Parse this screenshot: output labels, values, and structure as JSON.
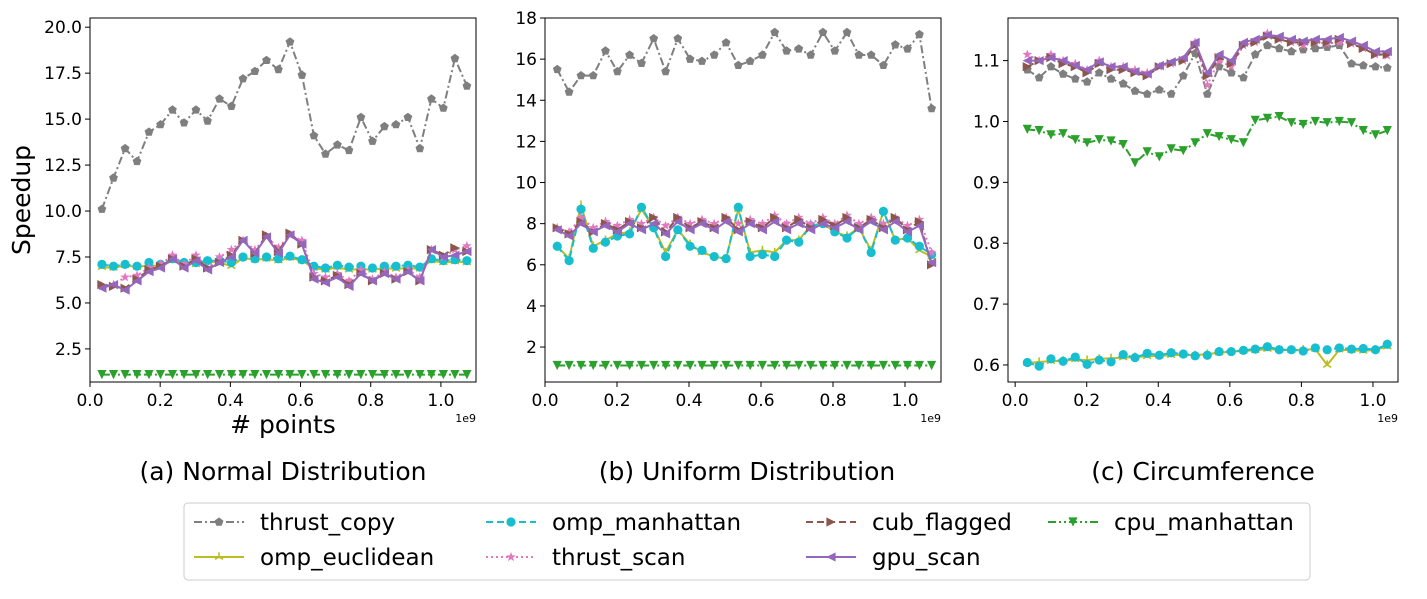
{
  "x_exponent": "1e9",
  "chart_data": [
    {
      "type": "line",
      "caption": "(a) Normal Distribution",
      "xlabel": "# points",
      "ylabel": "Speedup",
      "xlim": [
        0.0,
        1.1
      ],
      "ylim": [
        0.7,
        20.5
      ],
      "xticks": [
        0.0,
        0.2,
        0.4,
        0.6,
        0.8,
        1.0
      ],
      "xtick_labels": [
        "0.0",
        "0.2",
        "0.4",
        "0.6",
        "0.8",
        "1.0"
      ],
      "yticks": [
        2.5,
        5.0,
        7.5,
        10.0,
        12.5,
        15.0,
        17.5,
        20.0
      ],
      "ytick_labels": [
        "2.5",
        "5.0",
        "7.5",
        "10.0",
        "12.5",
        "15.0",
        "17.5",
        "20.0"
      ],
      "x": [
        0.034,
        0.067,
        0.1,
        0.134,
        0.168,
        0.201,
        0.235,
        0.268,
        0.302,
        0.335,
        0.369,
        0.403,
        0.436,
        0.47,
        0.503,
        0.537,
        0.57,
        0.604,
        0.638,
        0.671,
        0.705,
        0.738,
        0.772,
        0.805,
        0.839,
        0.872,
        0.906,
        0.94,
        0.973,
        1.007,
        1.04,
        1.074
      ],
      "series": [
        {
          "id": "thrust_copy",
          "values": [
            10.1,
            11.8,
            13.4,
            12.7,
            14.3,
            14.7,
            15.5,
            14.8,
            15.5,
            14.9,
            16.1,
            15.7,
            17.2,
            17.6,
            18.2,
            17.7,
            19.2,
            17.4,
            14.1,
            13.1,
            13.6,
            13.3,
            15.1,
            13.8,
            14.6,
            14.7,
            15.1,
            13.4,
            16.1,
            15.6,
            18.3,
            16.8
          ]
        },
        {
          "id": "omp_euclidean",
          "values": [
            6.95,
            6.9,
            7.05,
            6.95,
            7.05,
            7.0,
            7.3,
            7.2,
            7.1,
            7.25,
            7.2,
            7.0,
            7.45,
            7.35,
            7.4,
            7.3,
            7.45,
            7.3,
            6.9,
            6.8,
            6.95,
            6.8,
            6.85,
            6.8,
            6.9,
            6.85,
            6.9,
            6.85,
            7.3,
            7.2,
            7.25,
            7.2
          ]
        },
        {
          "id": "omp_manhattan",
          "values": [
            7.1,
            7.0,
            7.1,
            7.0,
            7.2,
            7.1,
            7.4,
            7.2,
            7.2,
            7.3,
            7.3,
            7.2,
            7.5,
            7.4,
            7.5,
            7.4,
            7.55,
            7.35,
            7.0,
            6.9,
            7.05,
            6.95,
            7.0,
            6.9,
            7.0,
            7.0,
            7.05,
            6.95,
            7.4,
            7.3,
            7.35,
            7.3
          ]
        },
        {
          "id": "thrust_scan",
          "values": [
            5.9,
            6.0,
            6.4,
            6.5,
            6.9,
            7.1,
            7.6,
            7.1,
            7.6,
            6.9,
            7.5,
            7.9,
            8.4,
            7.9,
            8.6,
            8.0,
            8.7,
            8.4,
            6.6,
            6.4,
            6.6,
            6.2,
            6.8,
            6.3,
            6.7,
            6.4,
            6.8,
            6.4,
            7.9,
            7.5,
            7.9,
            8.1
          ]
        },
        {
          "id": "cub_flagged",
          "values": [
            6.0,
            5.9,
            5.8,
            6.3,
            6.8,
            7.0,
            7.4,
            7.0,
            7.4,
            6.9,
            7.2,
            7.6,
            8.4,
            7.7,
            8.7,
            7.8,
            8.8,
            8.2,
            6.4,
            6.2,
            6.5,
            6.0,
            6.6,
            6.2,
            6.6,
            6.3,
            6.7,
            6.2,
            7.9,
            7.6,
            8.0,
            7.8
          ]
        },
        {
          "id": "gpu_scan",
          "values": [
            5.8,
            6.0,
            5.7,
            6.2,
            6.7,
            6.9,
            7.4,
            6.9,
            7.3,
            6.8,
            7.2,
            7.5,
            8.4,
            7.7,
            8.6,
            7.7,
            8.7,
            8.2,
            6.3,
            6.1,
            6.4,
            5.9,
            6.6,
            6.2,
            6.6,
            6.3,
            6.7,
            6.2,
            7.9,
            7.5,
            7.6,
            7.8
          ]
        },
        {
          "id": "cpu_manhattan",
          "values": [
            1.1,
            1.1,
            1.1,
            1.1,
            1.1,
            1.1,
            1.1,
            1.1,
            1.1,
            1.1,
            1.1,
            1.1,
            1.1,
            1.1,
            1.1,
            1.1,
            1.1,
            1.1,
            1.1,
            1.1,
            1.1,
            1.1,
            1.1,
            1.1,
            1.1,
            1.1,
            1.1,
            1.1,
            1.1,
            1.1,
            1.1,
            1.1
          ]
        }
      ]
    },
    {
      "type": "line",
      "caption": "(b) Uniform Distribution",
      "xlabel": "",
      "ylabel": "",
      "xlim": [
        0.0,
        1.1
      ],
      "ylim": [
        0.3,
        18.0
      ],
      "xticks": [
        0.0,
        0.2,
        0.4,
        0.6,
        0.8,
        1.0
      ],
      "xtick_labels": [
        "0.0",
        "0.2",
        "0.4",
        "0.6",
        "0.8",
        "1.0"
      ],
      "yticks": [
        2,
        4,
        6,
        8,
        10,
        12,
        14,
        16,
        18
      ],
      "ytick_labels": [
        "2",
        "4",
        "6",
        "8",
        "10",
        "12",
        "14",
        "16",
        "18"
      ],
      "x": [
        0.034,
        0.067,
        0.1,
        0.134,
        0.168,
        0.201,
        0.235,
        0.268,
        0.302,
        0.335,
        0.369,
        0.403,
        0.436,
        0.47,
        0.503,
        0.537,
        0.57,
        0.604,
        0.638,
        0.671,
        0.705,
        0.738,
        0.772,
        0.805,
        0.839,
        0.872,
        0.906,
        0.94,
        0.973,
        1.007,
        1.04,
        1.074
      ],
      "series": [
        {
          "id": "thrust_copy",
          "values": [
            15.5,
            14.4,
            15.2,
            15.2,
            16.4,
            15.4,
            16.2,
            15.8,
            17.0,
            15.4,
            17.0,
            16.0,
            15.9,
            16.2,
            16.8,
            15.7,
            15.9,
            16.2,
            17.3,
            16.4,
            16.5,
            16.2,
            17.3,
            16.4,
            17.3,
            16.2,
            16.2,
            15.7,
            16.7,
            16.5,
            17.2,
            13.6
          ]
        },
        {
          "id": "omp_euclidean",
          "values": [
            6.9,
            6.3,
            8.9,
            6.9,
            7.2,
            7.5,
            7.6,
            8.7,
            7.8,
            6.6,
            7.7,
            7.0,
            6.6,
            6.4,
            6.3,
            8.7,
            6.6,
            6.7,
            6.6,
            7.2,
            7.2,
            7.9,
            8.0,
            7.6,
            7.4,
            7.8,
            6.7,
            8.6,
            7.2,
            7.3,
            6.7,
            6.4
          ]
        },
        {
          "id": "omp_manhattan",
          "values": [
            6.9,
            6.2,
            8.7,
            6.8,
            7.1,
            7.4,
            7.5,
            8.8,
            7.8,
            6.4,
            7.7,
            6.9,
            6.7,
            6.4,
            6.3,
            8.8,
            6.4,
            6.5,
            6.4,
            7.2,
            7.1,
            7.9,
            8.0,
            7.6,
            7.3,
            7.8,
            6.6,
            8.6,
            7.2,
            7.3,
            6.9,
            6.5
          ]
        },
        {
          "id": "thrust_scan",
          "values": [
            7.8,
            7.6,
            8.3,
            7.8,
            8.1,
            7.9,
            8.2,
            8.0,
            8.3,
            7.9,
            8.3,
            8.0,
            8.2,
            8.0,
            8.3,
            8.0,
            8.2,
            8.0,
            8.4,
            8.0,
            8.3,
            8.0,
            8.3,
            8.0,
            8.4,
            8.0,
            8.3,
            8.0,
            8.3,
            7.9,
            8.2,
            6.6
          ]
        },
        {
          "id": "cub_flagged",
          "values": [
            7.8,
            7.5,
            8.1,
            7.6,
            8.0,
            7.7,
            8.1,
            7.8,
            8.3,
            7.6,
            8.3,
            7.8,
            8.1,
            7.8,
            8.3,
            7.7,
            8.1,
            7.8,
            8.3,
            7.8,
            8.2,
            7.8,
            8.2,
            7.9,
            8.3,
            7.8,
            8.2,
            7.8,
            8.3,
            7.7,
            8.1,
            6.0
          ]
        },
        {
          "id": "gpu_scan",
          "values": [
            7.7,
            7.4,
            8.0,
            7.6,
            7.9,
            7.6,
            8.0,
            7.7,
            8.0,
            7.5,
            8.1,
            7.7,
            8.0,
            7.7,
            8.1,
            7.6,
            8.0,
            7.7,
            8.1,
            7.7,
            8.0,
            7.7,
            8.0,
            7.8,
            8.1,
            7.7,
            8.1,
            7.7,
            8.1,
            7.6,
            7.9,
            6.1
          ]
        },
        {
          "id": "cpu_manhattan",
          "values": [
            1.1,
            1.1,
            1.1,
            1.1,
            1.1,
            1.1,
            1.1,
            1.1,
            1.1,
            1.1,
            1.1,
            1.1,
            1.1,
            1.1,
            1.1,
            1.1,
            1.1,
            1.1,
            1.1,
            1.1,
            1.1,
            1.1,
            1.1,
            1.1,
            1.1,
            1.1,
            1.1,
            1.1,
            1.1,
            1.1,
            1.1,
            1.1
          ]
        }
      ]
    },
    {
      "type": "line",
      "caption": "(c) Circumference",
      "xlabel": "",
      "ylabel": "",
      "xlim": [
        -0.02,
        1.07
      ],
      "ylim": [
        0.572,
        1.17
      ],
      "xticks": [
        0.0,
        0.2,
        0.4,
        0.6,
        0.8,
        1.0
      ],
      "xtick_labels": [
        "0.0",
        "0.2",
        "0.4",
        "0.6",
        "0.8",
        "1.0"
      ],
      "yticks": [
        0.6,
        0.7,
        0.8,
        0.9,
        1.0,
        1.1
      ],
      "ytick_labels": [
        "0.6",
        "0.7",
        "0.8",
        "0.9",
        "1.0",
        "1.1"
      ],
      "x": [
        0.034,
        0.067,
        0.1,
        0.134,
        0.168,
        0.201,
        0.235,
        0.268,
        0.302,
        0.335,
        0.369,
        0.403,
        0.436,
        0.47,
        0.503,
        0.537,
        0.57,
        0.604,
        0.638,
        0.671,
        0.705,
        0.738,
        0.772,
        0.805,
        0.839,
        0.872,
        0.906,
        0.94,
        0.973,
        1.007,
        1.04
      ],
      "series": [
        {
          "id": "thrust_copy",
          "values": [
            1.085,
            1.072,
            1.09,
            1.078,
            1.07,
            1.065,
            1.08,
            1.07,
            1.062,
            1.05,
            1.045,
            1.052,
            1.045,
            1.075,
            1.112,
            1.045,
            1.09,
            1.08,
            1.072,
            1.11,
            1.125,
            1.12,
            1.115,
            1.118,
            1.12,
            1.122,
            1.125,
            1.095,
            1.092,
            1.09,
            1.088
          ]
        },
        {
          "id": "omp_euclidean",
          "values": [
            0.603,
            0.605,
            0.606,
            0.607,
            0.609,
            0.608,
            0.61,
            0.611,
            0.612,
            0.613,
            0.614,
            0.615,
            0.616,
            0.617,
            0.616,
            0.618,
            0.62,
            0.622,
            0.623,
            0.624,
            0.626,
            0.625,
            0.624,
            0.625,
            0.626,
            0.6,
            0.625,
            0.624,
            0.623,
            0.625,
            0.63
          ]
        },
        {
          "id": "omp_manhattan",
          "values": [
            0.604,
            0.598,
            0.61,
            0.606,
            0.613,
            0.601,
            0.608,
            0.605,
            0.617,
            0.612,
            0.619,
            0.616,
            0.62,
            0.618,
            0.615,
            0.616,
            0.622,
            0.622,
            0.624,
            0.626,
            0.63,
            0.625,
            0.625,
            0.623,
            0.628,
            0.625,
            0.628,
            0.626,
            0.627,
            0.625,
            0.634
          ]
        },
        {
          "id": "thrust_scan",
          "values": [
            1.11,
            1.1,
            1.11,
            1.1,
            1.095,
            1.085,
            1.1,
            1.09,
            1.09,
            1.085,
            1.08,
            1.09,
            1.095,
            1.1,
            1.13,
            1.06,
            1.1,
            1.09,
            1.125,
            1.13,
            1.145,
            1.135,
            1.13,
            1.125,
            1.13,
            1.128,
            1.13,
            1.128,
            1.12,
            1.11,
            1.108
          ]
        },
        {
          "id": "cub_flagged",
          "values": [
            1.09,
            1.1,
            1.105,
            1.095,
            1.09,
            1.08,
            1.095,
            1.085,
            1.085,
            1.08,
            1.075,
            1.09,
            1.095,
            1.1,
            1.125,
            1.075,
            1.105,
            1.095,
            1.125,
            1.13,
            1.14,
            1.135,
            1.13,
            1.13,
            1.13,
            1.13,
            1.135,
            1.128,
            1.12,
            1.11,
            1.11
          ]
        },
        {
          "id": "gpu_scan",
          "values": [
            1.1,
            1.1,
            1.105,
            1.1,
            1.092,
            1.085,
            1.098,
            1.09,
            1.09,
            1.082,
            1.078,
            1.092,
            1.098,
            1.105,
            1.13,
            1.08,
            1.11,
            1.1,
            1.13,
            1.135,
            1.142,
            1.14,
            1.135,
            1.132,
            1.135,
            1.135,
            1.138,
            1.132,
            1.125,
            1.115,
            1.115
          ]
        },
        {
          "id": "cpu_manhattan",
          "values": [
            0.987,
            0.985,
            0.978,
            0.98,
            0.97,
            0.965,
            0.97,
            0.968,
            0.962,
            0.932,
            0.95,
            0.942,
            0.955,
            0.952,
            0.965,
            0.98,
            0.975,
            0.97,
            0.965,
            1.002,
            1.005,
            1.008,
            0.998,
            0.995,
            1.0,
            0.998,
            1.0,
            0.998,
            0.985,
            0.978,
            0.985
          ]
        }
      ]
    }
  ],
  "legend": {
    "columns": [
      [
        {
          "id": "thrust_copy",
          "label": "thrust_copy"
        },
        {
          "id": "omp_euclidean",
          "label": "omp_euclidean"
        }
      ],
      [
        {
          "id": "omp_manhattan",
          "label": "omp_manhattan"
        },
        {
          "id": "thrust_scan",
          "label": "thrust_scan"
        }
      ],
      [
        {
          "id": "cub_flagged",
          "label": "cub_flagged"
        },
        {
          "id": "gpu_scan",
          "label": "gpu_scan"
        }
      ],
      [
        {
          "id": "cpu_manhattan",
          "label": "cpu_manhattan"
        }
      ]
    ],
    "placement": "bottom-center"
  },
  "series_styles": {
    "thrust_copy": {
      "color": "#7f7f7f",
      "dash": "dashdot",
      "marker": "pentagon"
    },
    "omp_euclidean": {
      "color": "#bcbd22",
      "dash": "solid",
      "marker": "tri"
    },
    "omp_manhattan": {
      "color": "#17becf",
      "dash": "dashed",
      "marker": "circle"
    },
    "thrust_scan": {
      "color": "#e377c2",
      "dash": "dotted",
      "marker": "star"
    },
    "cub_flagged": {
      "color": "#8c564b",
      "dash": "dashed",
      "marker": "triangle-right"
    },
    "gpu_scan": {
      "color": "#9467bd",
      "dash": "solid",
      "marker": "triangle-left"
    },
    "cpu_manhattan": {
      "color": "#2ca02c",
      "dash": "dashdotdot",
      "marker": "triangle-down"
    }
  }
}
